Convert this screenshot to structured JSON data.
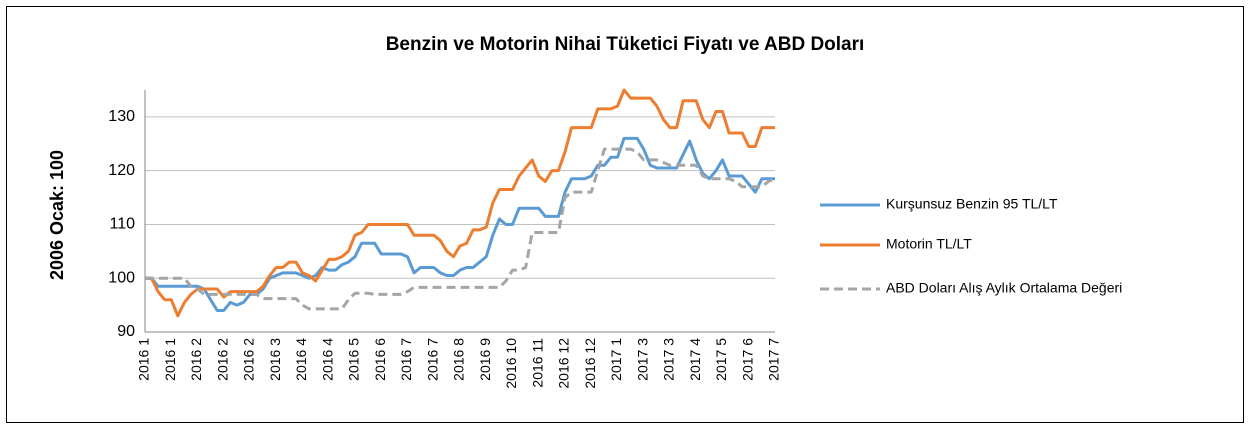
{
  "chart_data": {
    "type": "line",
    "title": "Benzin ve Motorin Nihai Tüketici Fiyatı ve ABD Doları",
    "ylabel": "2006 Ocak: 100",
    "categories": [
      "2016 1",
      null,
      null,
      null,
      "2016 1",
      null,
      null,
      null,
      "2016 2",
      null,
      null,
      null,
      "2016 2",
      null,
      null,
      null,
      "2016 2",
      null,
      null,
      null,
      "2016 3",
      null,
      null,
      null,
      "2016 4",
      null,
      null,
      null,
      "2016 4",
      null,
      null,
      null,
      "2016 5",
      null,
      null,
      null,
      "2016 6",
      null,
      null,
      null,
      "2016 7",
      null,
      null,
      null,
      "2016 7",
      null,
      null,
      null,
      "2016 8",
      null,
      null,
      null,
      "2016 9",
      null,
      null,
      null,
      "2016 10",
      null,
      null,
      null,
      "2016 11",
      null,
      null,
      null,
      "2016 12",
      null,
      null,
      null,
      "2016 12",
      null,
      null,
      null,
      "2017 1",
      null,
      null,
      null,
      "2017 3",
      null,
      null,
      null,
      "2017 3",
      null,
      null,
      null,
      "2017 4",
      null,
      null,
      null,
      "2017 5",
      null,
      null,
      null,
      "2017 6",
      null,
      null,
      null,
      "2017 7"
    ],
    "series": [
      {
        "name": "Kurşunsuz Benzin 95 TL/LT",
        "color": "#5b9bd5",
        "dashed": false,
        "values": [
          100,
          100,
          98.5,
          98.5,
          98.5,
          98.5,
          98.5,
          98.5,
          98.5,
          98,
          96,
          94,
          94,
          95.5,
          95,
          95.5,
          97,
          97,
          98,
          100,
          100.5,
          101,
          101,
          101,
          100.5,
          100,
          100.5,
          102,
          101.5,
          101.5,
          102.5,
          103,
          104,
          106.5,
          106.5,
          106.5,
          104.5,
          104.5,
          104.5,
          104.5,
          104,
          101,
          102,
          102,
          102,
          101,
          100.5,
          100.5,
          101.5,
          102,
          102,
          103,
          104,
          108,
          111,
          110,
          110,
          113,
          113,
          113,
          113,
          111.5,
          111.5,
          111.5,
          116,
          118.5,
          118.5,
          118.5,
          119,
          121,
          121,
          122.5,
          122.5,
          126,
          126,
          126,
          124,
          121,
          120.5,
          120.5,
          120.5,
          120.5,
          123,
          125.5,
          122,
          119.5,
          118.5,
          120,
          122,
          119,
          119,
          119,
          117.5,
          116,
          118.5,
          118.5,
          118.5
        ]
      },
      {
        "name": "Motorin TL/LT",
        "color": "#ed7d31",
        "dashed": false,
        "values": [
          100,
          100,
          97.5,
          96,
          96,
          93,
          95.5,
          97,
          98,
          98,
          98,
          98,
          96.5,
          97.5,
          97.5,
          97.5,
          97.5,
          97.5,
          98.5,
          100.5,
          102,
          102,
          103,
          103,
          101,
          100.5,
          99.5,
          101.5,
          103.5,
          103.5,
          104,
          105,
          108,
          108.5,
          110,
          110,
          110,
          110,
          110,
          110,
          110,
          108,
          108,
          108,
          108,
          107,
          105,
          104,
          106,
          106.5,
          109,
          109,
          109.5,
          114,
          116.5,
          116.5,
          116.5,
          119,
          120.5,
          122,
          119,
          118,
          120,
          120,
          123.5,
          128,
          128,
          128,
          128,
          131.5,
          131.5,
          131.5,
          132,
          135,
          133.5,
          133.5,
          133.5,
          133.5,
          132,
          129.5,
          128,
          128,
          133,
          133,
          133,
          129.5,
          128,
          131,
          131,
          127,
          127,
          127,
          124.5,
          124.5,
          128,
          128,
          128
        ]
      },
      {
        "name": "ABD Doları Alış Aylık Ortalama Değeri",
        "color": "#a5a5a5",
        "dashed": true,
        "values": [
          100,
          100,
          100,
          100,
          100,
          100,
          100,
          98.5,
          98,
          97,
          97,
          97,
          97,
          97,
          97,
          97,
          97,
          97,
          96.2,
          96.2,
          96.2,
          96.2,
          96.2,
          96.2,
          95,
          94.3,
          94.3,
          94.3,
          94.3,
          94.3,
          94.3,
          96,
          97.2,
          97.2,
          97.2,
          97,
          97,
          97,
          97,
          97,
          97.5,
          98.3,
          98.3,
          98.3,
          98.3,
          98.3,
          98.3,
          98.3,
          98.3,
          98.3,
          98.3,
          98.3,
          98.3,
          98.3,
          98.3,
          99.5,
          101.5,
          101.5,
          102,
          108.5,
          108.5,
          108.5,
          108.5,
          108.5,
          115,
          116,
          116,
          116,
          116,
          120,
          124,
          124,
          124,
          124,
          124,
          123.5,
          122,
          122,
          122,
          121.5,
          121,
          121,
          121,
          121,
          121,
          119,
          118.5,
          118.5,
          118.5,
          118.5,
          118,
          117,
          117,
          117,
          117,
          118,
          118.5
        ]
      }
    ],
    "ylim": [
      90,
      135
    ],
    "yticks": [
      90,
      100,
      110,
      120,
      130
    ],
    "grid": true,
    "legend": "right"
  }
}
